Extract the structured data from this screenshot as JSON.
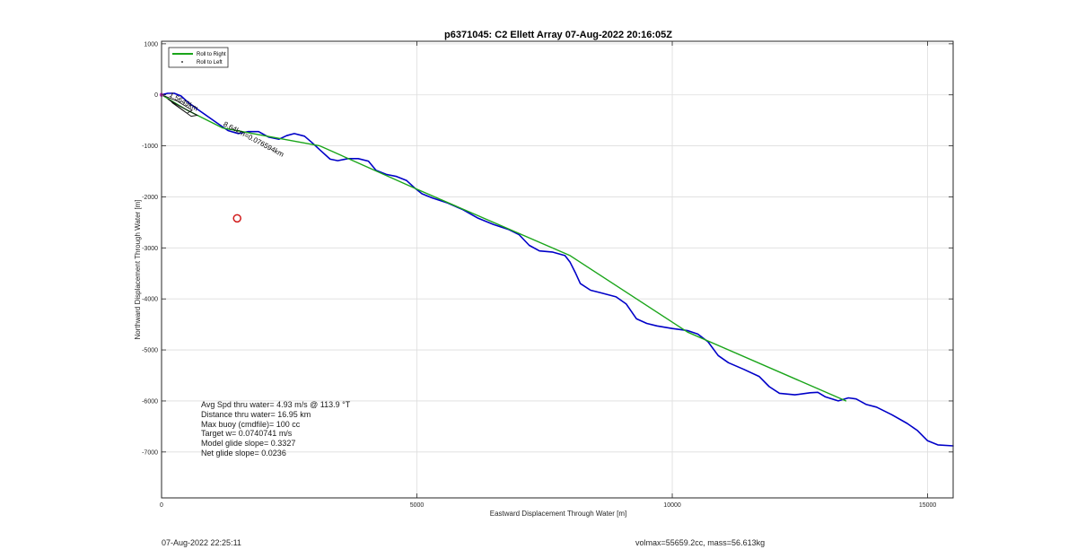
{
  "chart_data": {
    "type": "line",
    "title": "p6371045: C2 Ellett Array 07-Aug-2022 20:16:05Z",
    "xlabel": "Eastward Displacement Through Water [m]",
    "ylabel": "Northward Displacement Through Water [m]",
    "xlim": [
      0,
      15500
    ],
    "ylim": [
      -7900,
      1050
    ],
    "xticks": [
      0,
      5000,
      10000,
      15000
    ],
    "yticks": [
      1000,
      0,
      -1000,
      -2000,
      -3000,
      -4000,
      -5000,
      -6000,
      -7000
    ],
    "grid": true,
    "legend_placement": "top-left",
    "legend": [
      {
        "name": "Roll to Right",
        "color": "#1aa51a",
        "style": "line"
      },
      {
        "name": "Roll to Left",
        "color": "#000000",
        "style": "dot"
      }
    ],
    "series": [
      {
        "name": "Roll to Right",
        "color": "#1aa51a",
        "x": [
          0,
          500,
          1200,
          1900,
          3100,
          5000,
          8000,
          10300,
          13400
        ],
        "y": [
          0,
          -300,
          -650,
          -780,
          -1000,
          -1850,
          -3150,
          -4650,
          -6000
        ]
      },
      {
        "color": "#0000c8",
        "x": [
          0,
          120,
          250,
          380,
          520,
          700,
          900,
          1100,
          1300,
          1500,
          1700,
          1900,
          2100,
          2300,
          2450,
          2600,
          2800,
          2950,
          3100,
          3300,
          3450,
          3650,
          3850,
          4050,
          4200,
          4400,
          4600,
          4800,
          4950,
          5100,
          5300,
          5600,
          5900,
          6200,
          6500,
          6800,
          7000,
          7200,
          7400,
          7650,
          7900,
          8000,
          8100,
          8200,
          8400,
          8600,
          8900,
          9100,
          9300,
          9500,
          9700,
          10000,
          10300,
          10500,
          10700,
          10900,
          11100,
          11400,
          11700,
          11900,
          12100,
          12400,
          12700,
          12850,
          13000,
          13250,
          13450,
          13600,
          13800,
          14000,
          14300,
          14600,
          14800,
          15000,
          15200,
          15500
        ],
        "y": [
          0,
          30,
          30,
          -20,
          -150,
          -280,
          -420,
          -560,
          -700,
          -760,
          -720,
          -720,
          -830,
          -870,
          -800,
          -760,
          -810,
          -940,
          -1080,
          -1260,
          -1290,
          -1250,
          -1250,
          -1300,
          -1480,
          -1560,
          -1600,
          -1680,
          -1820,
          -1940,
          -2020,
          -2120,
          -2250,
          -2420,
          -2540,
          -2640,
          -2740,
          -2950,
          -3060,
          -3080,
          -3150,
          -3280,
          -3480,
          -3700,
          -3830,
          -3880,
          -3960,
          -4100,
          -4390,
          -4480,
          -4530,
          -4580,
          -4620,
          -4690,
          -4840,
          -5110,
          -5250,
          -5380,
          -5520,
          -5720,
          -5850,
          -5880,
          -5840,
          -5830,
          -5920,
          -6000,
          -5940,
          -5960,
          -6070,
          -6120,
          -6270,
          -6440,
          -6580,
          -6780,
          -6860,
          -6880
        ]
      }
    ],
    "markers": [
      {
        "x": 1480,
        "y": -2420,
        "color": "#d11a1a",
        "shape": "circle"
      }
    ],
    "annotations": [
      {
        "text": "1.5649km",
        "x": 140,
        "y": -30,
        "rotation": -28
      },
      {
        "text": "8.64km=0.076594km",
        "x": 1200,
        "y": -600,
        "rotation": -28
      }
    ],
    "stats": [
      "Avg Spd thru water=  4.93 m/s @ 113.9 °T",
      "Distance thru water= 16.95 km",
      "Max buoy (cmdfile)= 100 cc",
      "Target w= 0.0740741 m/s",
      "Model glide slope= 0.3327",
      "Net glide slope= 0.0236"
    ]
  },
  "footer": {
    "left": "07-Aug-2022 22:25:11",
    "right": "volmax=55659.2cc, mass=56.613kg"
  }
}
